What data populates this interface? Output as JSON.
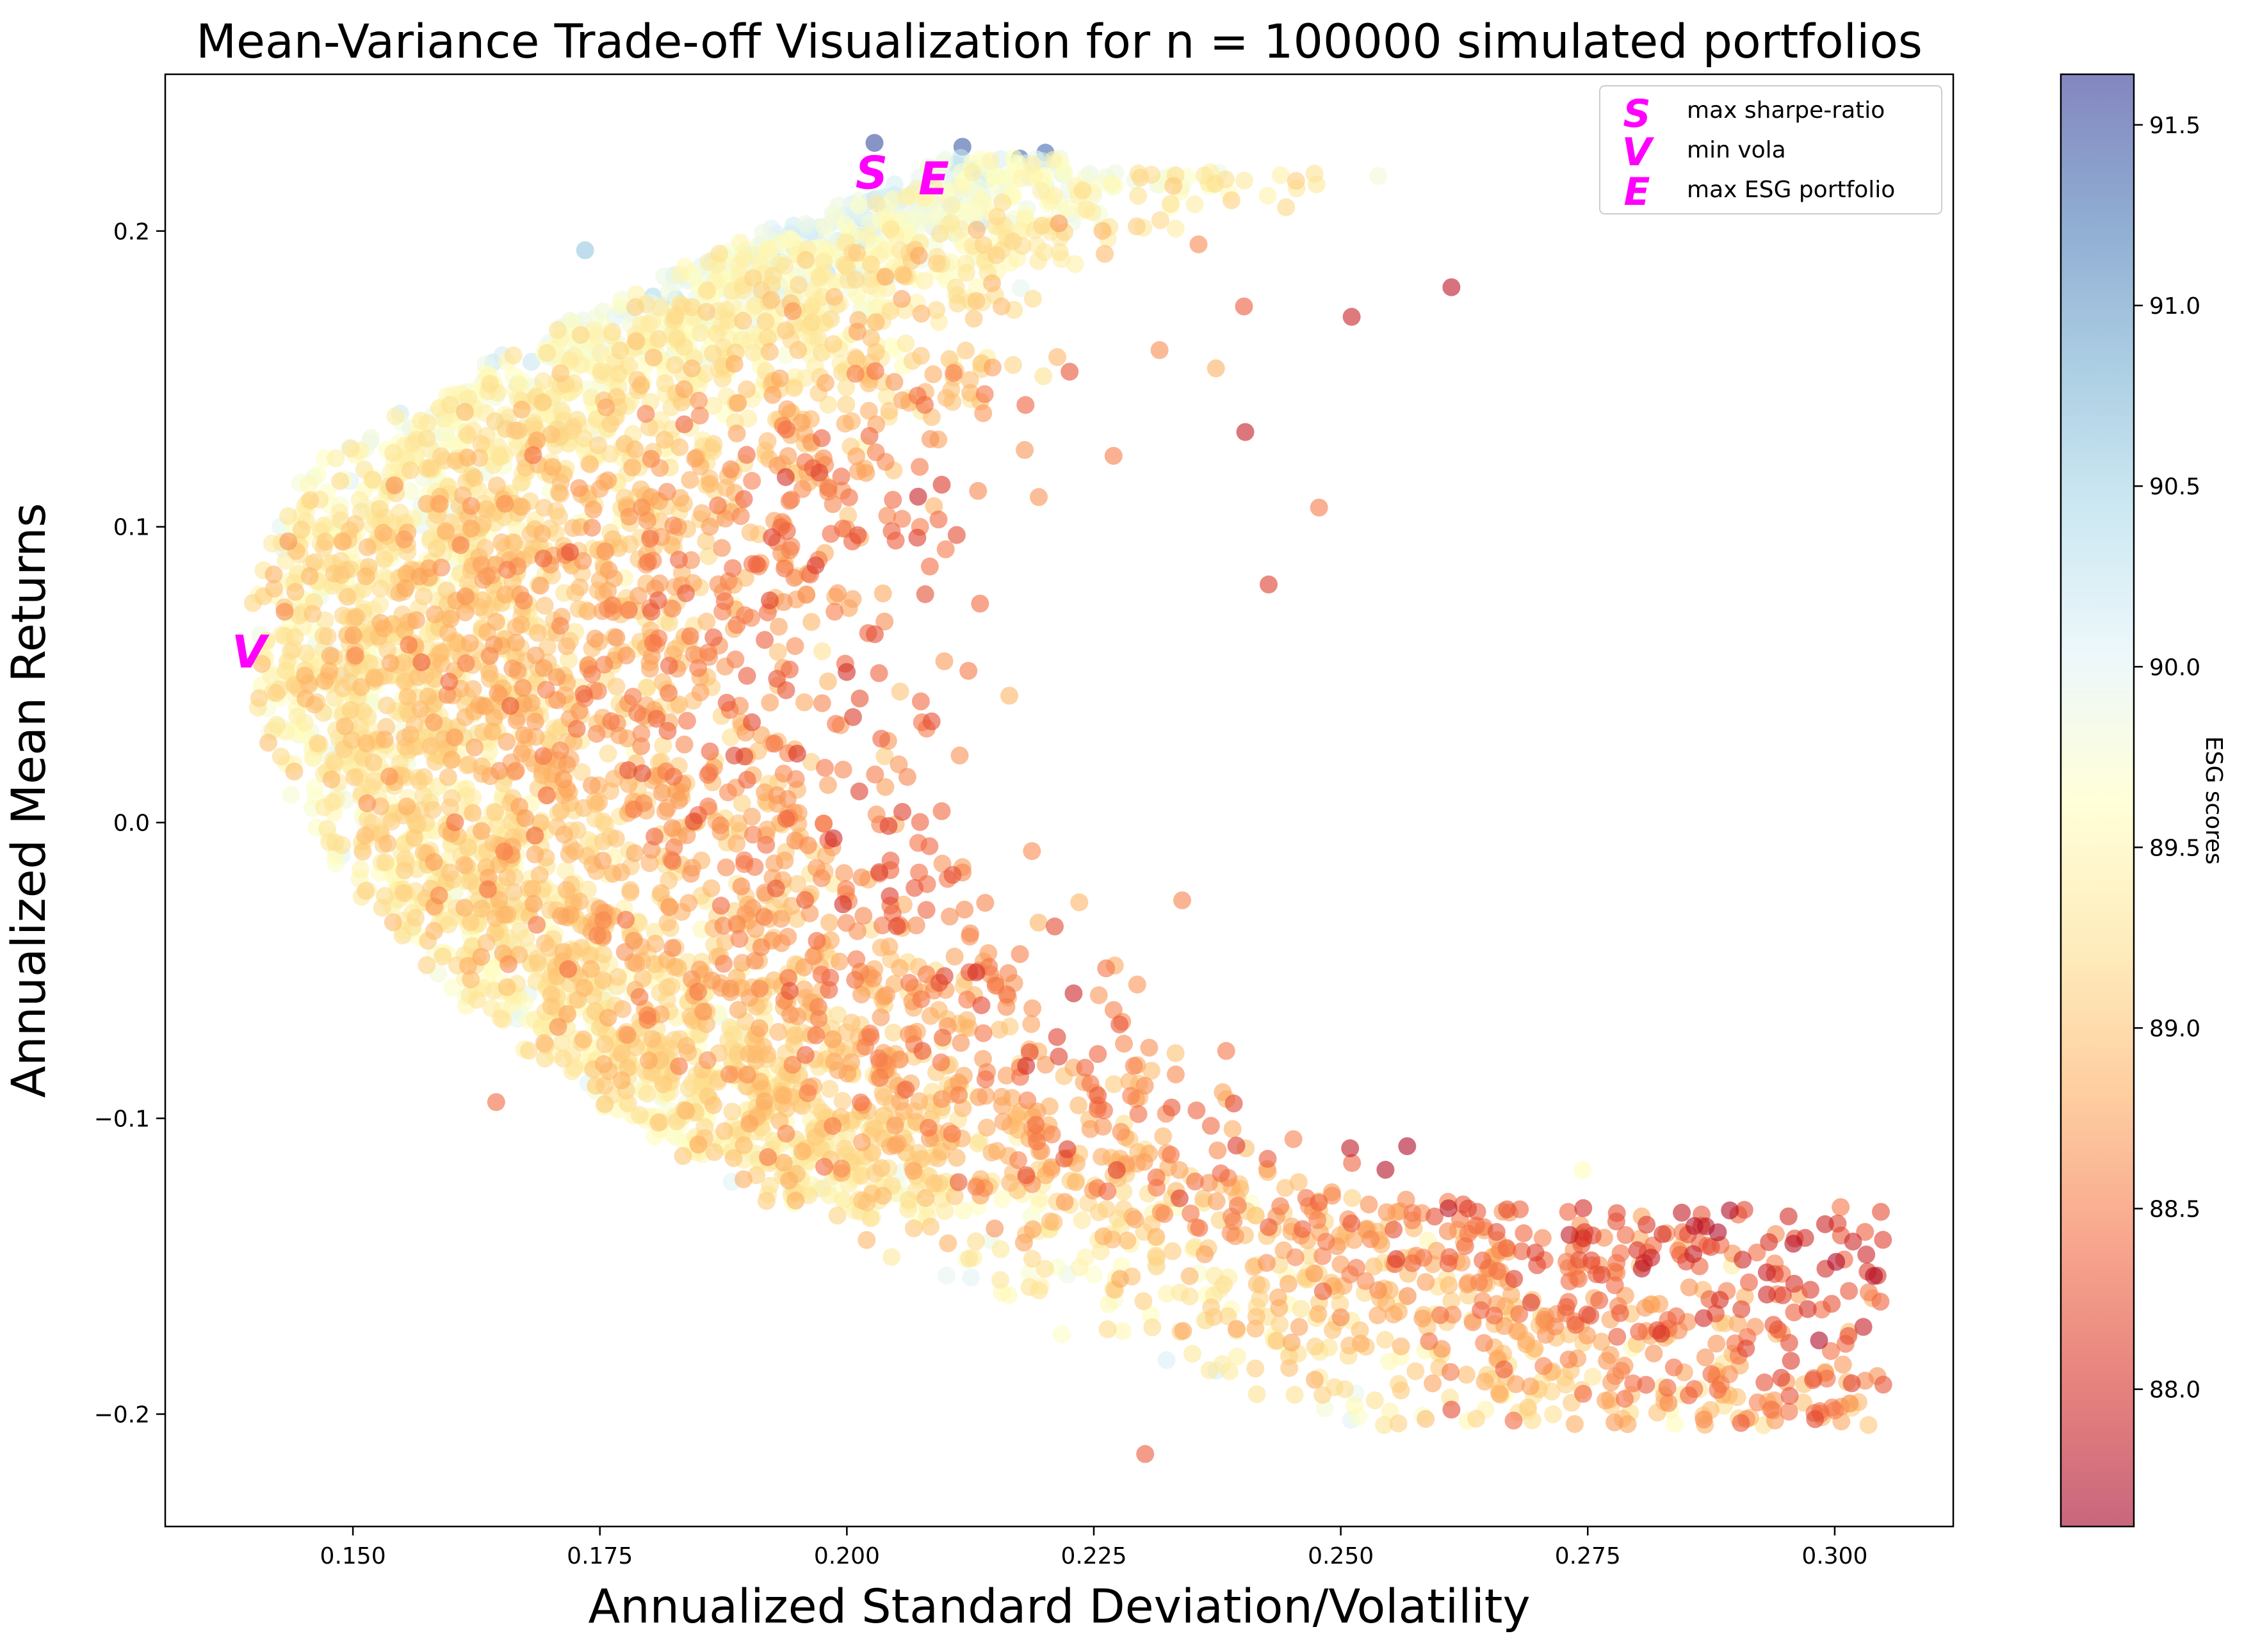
{
  "chart_data": {
    "type": "scatter",
    "title": "Mean-Variance Trade-off Visualization for n = 100000 simulated portfolios",
    "xlabel": "Annualized Standard Deviation/Volatility",
    "ylabel": "Annualized Mean Returns",
    "xlim": [
      0.131,
      0.312
    ],
    "ylim": [
      -0.238,
      0.253
    ],
    "x_ticks": [
      0.15,
      0.175,
      0.2,
      0.225,
      0.25,
      0.275,
      0.3
    ],
    "x_tick_labels": [
      "0.150",
      "0.175",
      "0.200",
      "0.225",
      "0.250",
      "0.275",
      "0.300"
    ],
    "y_ticks": [
      -0.2,
      -0.1,
      0.0,
      0.1,
      0.2
    ],
    "y_tick_labels": [
      "−0.2",
      "−0.1",
      "0.0",
      "0.1",
      "0.2"
    ],
    "grid": false,
    "point_alpha": 0.6,
    "n_portfolios": 100000,
    "colorbar": {
      "label": "ESG scores",
      "colormap": "RdYlBu",
      "range": [
        87.62,
        91.64
      ],
      "ticks": [
        88.0,
        88.5,
        89.0,
        89.5,
        90.0,
        90.5,
        91.0,
        91.5
      ],
      "tick_labels": [
        "88.0",
        "88.5",
        "89.0",
        "89.5",
        "90.0",
        "90.5",
        "91.0",
        "91.5"
      ],
      "stops": [
        "#a50026",
        "#d73027",
        "#f46d43",
        "#fdae61",
        "#fee090",
        "#ffffbf",
        "#e0f3f8",
        "#abd9e9",
        "#74add1",
        "#4575b4",
        "#313695"
      ]
    },
    "legend": {
      "placement": "upper right",
      "entries": [
        {
          "marker": "S",
          "label": "max sharpe-ratio"
        },
        {
          "marker": "V",
          "label": "min vola"
        },
        {
          "marker": "E",
          "label": "max ESG portfolio"
        }
      ]
    },
    "highlighted_points": [
      {
        "name": "max sharpe-ratio",
        "marker": "S",
        "x": 0.2025,
        "y": 0.22
      },
      {
        "name": "min vola",
        "marker": "V",
        "x": 0.1395,
        "y": 0.058
      },
      {
        "name": "max ESG portfolio",
        "marker": "E",
        "x": 0.2088,
        "y": 0.218
      }
    ],
    "marker_color": "#ff00ff",
    "sample_points": [
      {
        "x": 0.2612,
        "y": 0.181,
        "esg": 87.8
      },
      {
        "x": 0.2511,
        "y": 0.171,
        "esg": 87.9
      },
      {
        "x": 0.2028,
        "y": 0.2298,
        "esg": 91.5
      },
      {
        "x": 0.2201,
        "y": 0.2265,
        "esg": 91.3
      },
      {
        "x": 0.2117,
        "y": 0.2285,
        "esg": 91.4
      },
      {
        "x": 0.2175,
        "y": 0.2245,
        "esg": 91.3
      },
      {
        "x": 0.2302,
        "y": -0.2135,
        "esg": 88.3
      },
      {
        "x": 0.2992,
        "y": -0.188,
        "esg": 88.4
      },
      {
        "x": 0.2985,
        "y": -0.199,
        "esg": 88.4
      },
      {
        "x": 0.2905,
        "y": -0.203,
        "esg": 88.3
      },
      {
        "x": 0.2612,
        "y": -0.1985,
        "esg": 88.2
      },
      {
        "x": 0.2675,
        "y": -0.2022,
        "esg": 88.4
      },
      {
        "x": 0.2896,
        "y": -0.1498,
        "esg": 89.4
      },
      {
        "x": 0.2745,
        "y": -0.1175,
        "esg": 89.6
      },
      {
        "x": 0.2427,
        "y": 0.0805,
        "esg": 88.1
      },
      {
        "x": 0.2478,
        "y": 0.1065,
        "esg": 88.5
      },
      {
        "x": 0.2402,
        "y": 0.1745,
        "esg": 88.3
      },
      {
        "x": 0.2356,
        "y": 0.1955,
        "esg": 88.6
      },
      {
        "x": 0.2328,
        "y": 0.2082,
        "esg": 89.6
      },
      {
        "x": 0.1735,
        "y": 0.1935,
        "esg": 90.6
      },
      {
        "x": 0.1645,
        "y": -0.0945,
        "esg": 88.4
      },
      {
        "x": 0.1725,
        "y": 0.0645,
        "esg": 89.3
      }
    ]
  }
}
